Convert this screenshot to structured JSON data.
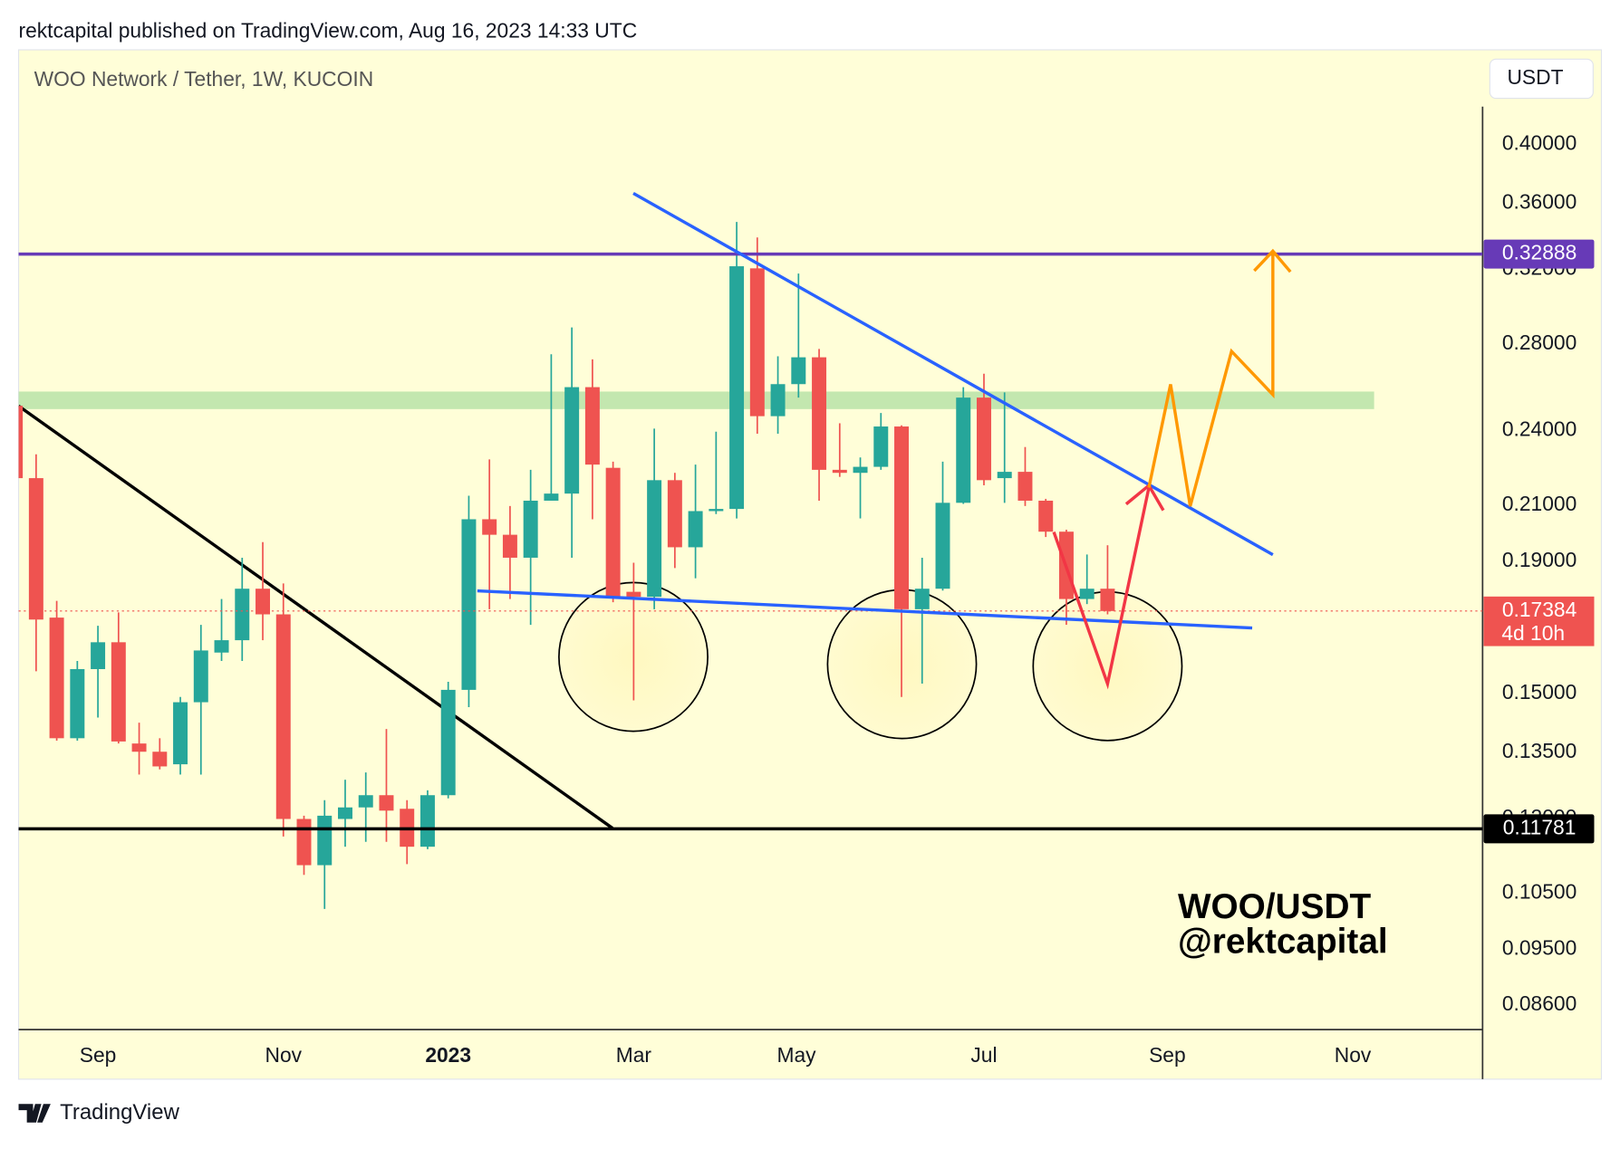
{
  "header": {
    "text": "rektcapital published on TradingView.com, Aug 16, 2023 14:33 UTC"
  },
  "chart_data": {
    "type": "candlestick",
    "title": "WOO Network / Tether, 1W, KUCOIN",
    "currency": "USDT",
    "log_scale": true,
    "up_color": "#26a69a",
    "down_color": "#ef5350",
    "open": [
      0.2508,
      0.2204,
      0.1718,
      0.1385,
      0.1567,
      0.1644,
      0.1372,
      0.1352,
      0.1322,
      0.1477,
      0.1614,
      0.165,
      0.1809,
      0.1728,
      0.1199,
      0.1104,
      0.1199,
      0.1224,
      0.1251,
      0.1221,
      0.1141,
      0.1251,
      0.151,
      0.2048,
      0.1992,
      0.1912,
      0.2117,
      0.2144,
      0.2593,
      0.2245,
      0.1799,
      0.1783,
      0.2196,
      0.1948,
      0.2078,
      0.2086,
      0.3206,
      0.2462,
      0.2607,
      0.2735,
      0.2237,
      0.2225,
      0.2249,
      0.2417,
      0.1744,
      0.1809,
      0.2109,
      0.2545,
      0.2204,
      0.2229,
      0.2117,
      0.2003,
      0.1776,
      0.1809
    ],
    "high": [
      0.2522,
      0.23,
      0.177,
      0.159,
      0.1693,
      0.1734,
      0.1424,
      0.1385,
      0.1491,
      0.1696,
      0.1776,
      0.1912,
      0.1966,
      0.1826,
      0.1206,
      0.124,
      0.1286,
      0.1303,
      0.1408,
      0.124,
      0.1262,
      0.1532,
      0.2136,
      0.2279,
      0.2097,
      0.2237,
      0.275,
      0.2885,
      0.2725,
      0.227,
      0.1895,
      0.2408,
      0.2225,
      0.2258,
      0.2395,
      0.3483,
      0.3388,
      0.274,
      0.3176,
      0.2776,
      0.2431,
      0.2287,
      0.2476,
      0.2422,
      0.1912,
      0.227,
      0.2593,
      0.2656,
      0.2569,
      0.233,
      0.2124,
      0.201,
      0.1923,
      0.1955
    ],
    "low": [
      0.2204,
      0.1561,
      0.1379,
      0.1379,
      0.1437,
      0.1372,
      0.1298,
      0.131,
      0.1298,
      0.1298,
      0.159,
      0.159,
      0.165,
      0.1162,
      0.1085,
      0.1021,
      0.1141,
      0.1151,
      0.1151,
      0.1106,
      0.1136,
      0.1244,
      0.1464,
      0.1744,
      0.1776,
      0.1696,
      0.2117,
      0.1912,
      0.2048,
      0.1766,
      0.1482,
      0.1744,
      0.1877,
      0.1843,
      0.2067,
      0.2051,
      0.2386,
      0.2386,
      0.2545,
      0.2117,
      0.2209,
      0.2051,
      0.2237,
      0.1491,
      0.1527,
      0.1803,
      0.2105,
      0.2176,
      0.2109,
      0.2097,
      0.1984,
      0.1696,
      0.176,
      0.1728
    ],
    "close": [
      0.2204,
      0.1712,
      0.1385,
      0.1567,
      0.1644,
      0.1377,
      0.1352,
      0.1317,
      0.1477,
      0.162,
      0.165,
      0.1809,
      0.1728,
      0.1199,
      0.1104,
      0.1206,
      0.1224,
      0.1251,
      0.1217,
      0.1141,
      0.1251,
      0.151,
      0.2048,
      0.1992,
      0.1912,
      0.2117,
      0.2144,
      0.2593,
      0.2258,
      0.1783,
      0.1783,
      0.2196,
      0.1948,
      0.2078,
      0.2086,
      0.3218,
      0.2462,
      0.2607,
      0.2735,
      0.2237,
      0.2225,
      0.2249,
      0.2417,
      0.1744,
      0.1809,
      0.2109,
      0.2545,
      0.2196,
      0.2229,
      0.2117,
      0.2003,
      0.1776,
      0.1809,
      0.17384
    ],
    "xlim": [
      0.15,
      71.2
    ],
    "xticks": [
      {
        "value": 4,
        "label": "Sep"
      },
      {
        "value": 13,
        "label": "Nov"
      },
      {
        "value": 21,
        "label": "2023"
      },
      {
        "value": 30,
        "label": "Mar"
      },
      {
        "value": 37.9,
        "label": "May"
      },
      {
        "value": 47,
        "label": "Jul"
      },
      {
        "value": 55.9,
        "label": "Sep"
      },
      {
        "value": 64.9,
        "label": "Nov"
      }
    ],
    "ylim": [
      0.0823,
      0.428
    ],
    "yticks": [
      {
        "value": 0.4,
        "label": "0.40000"
      },
      {
        "value": 0.36,
        "label": "0.36000"
      },
      {
        "value": 0.32,
        "label": "0.32000"
      },
      {
        "value": 0.28,
        "label": "0.28000"
      },
      {
        "value": 0.24,
        "label": "0.24000"
      },
      {
        "value": 0.21,
        "label": "0.21000"
      },
      {
        "value": 0.19,
        "label": "0.19000"
      },
      {
        "value": 0.15,
        "label": "0.15000"
      },
      {
        "value": 0.135,
        "label": "0.13500"
      },
      {
        "value": 0.12,
        "label": "0.12000"
      },
      {
        "value": 0.105,
        "label": "0.10500"
      },
      {
        "value": 0.095,
        "label": "0.09500"
      },
      {
        "value": 0.086,
        "label": "0.08600"
      }
    ],
    "price_lines": [
      {
        "value": 0.32888,
        "color": "#673ab7"
      },
      {
        "value": 0.11781,
        "color": "#000000"
      }
    ],
    "last_price": {
      "value": 0.17384,
      "countdown": "4d 10h",
      "color": "#ef5350"
    },
    "watermark": [
      "WOO/USDT",
      "@rektcapital"
    ]
  },
  "footer": {
    "brand": "TradingView"
  }
}
